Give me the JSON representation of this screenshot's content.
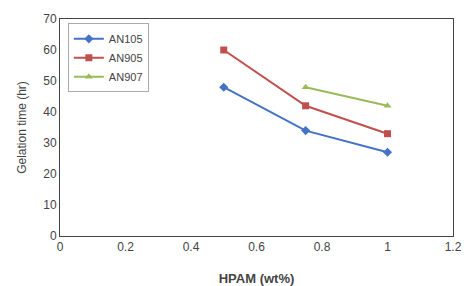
{
  "chart_data": {
    "type": "line",
    "xlabel": "HPAM (wt%)",
    "ylabel": "Gelation time (hr)",
    "series": [
      {
        "name": "AN105",
        "x": [
          0.5,
          0.75,
          1
        ],
        "values": [
          48,
          34,
          27
        ],
        "color": "#4472C4",
        "marker": "diamond",
        "line_style": "solid"
      },
      {
        "name": "AN905",
        "x": [
          0.5,
          0.75,
          1
        ],
        "values": [
          60,
          42,
          33
        ],
        "color": "#C0504D",
        "marker": "square",
        "line_style": "solid"
      },
      {
        "name": "AN907",
        "x": [
          0.75,
          1
        ],
        "values": [
          48,
          42
        ],
        "color": "#9BBB59",
        "marker": "triangle",
        "line_style": "solid"
      }
    ],
    "xlim": [
      0,
      1.2
    ],
    "ylim": [
      0,
      70
    ],
    "xticks": [
      0,
      0.2,
      0.4,
      0.6,
      0.8,
      1,
      1.2
    ],
    "yticks": [
      0,
      10,
      20,
      30,
      40,
      50,
      60,
      70
    ],
    "grid": false,
    "legend": "upper left"
  }
}
